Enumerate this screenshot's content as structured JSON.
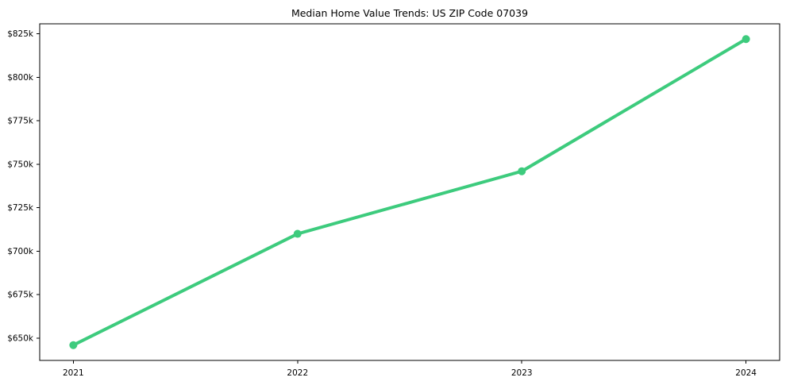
{
  "chart_data": {
    "type": "line",
    "title": "Median Home Value Trends: US ZIP Code 07039",
    "xlabel": "",
    "ylabel": "",
    "x": [
      2021,
      2022,
      2023,
      2024
    ],
    "x_tick_labels": [
      "2021",
      "2022",
      "2023",
      "2024"
    ],
    "series": [
      {
        "name": "Median Home Value",
        "values_k": [
          646,
          710,
          746,
          822
        ],
        "values_usd": [
          646000,
          710000,
          746000,
          822000
        ]
      }
    ],
    "y_ticks_k": [
      650,
      675,
      700,
      725,
      750,
      775,
      800,
      825
    ],
    "y_tick_labels": [
      "$650k",
      "$675k",
      "$700k",
      "$725k",
      "$750k",
      "$775k",
      "$800k",
      "$825k"
    ],
    "xlim": [
      2020.85,
      2024.15
    ],
    "ylim_k": [
      637.2,
      830.8
    ],
    "grid": false,
    "legend": "none",
    "colors": {
      "line": "#3dcb7d",
      "marker": "#3dcb7d",
      "spine": "#000000",
      "text": "#000000",
      "background": "#ffffff"
    },
    "line_width": 4,
    "marker": "circle",
    "marker_radius": 5
  }
}
